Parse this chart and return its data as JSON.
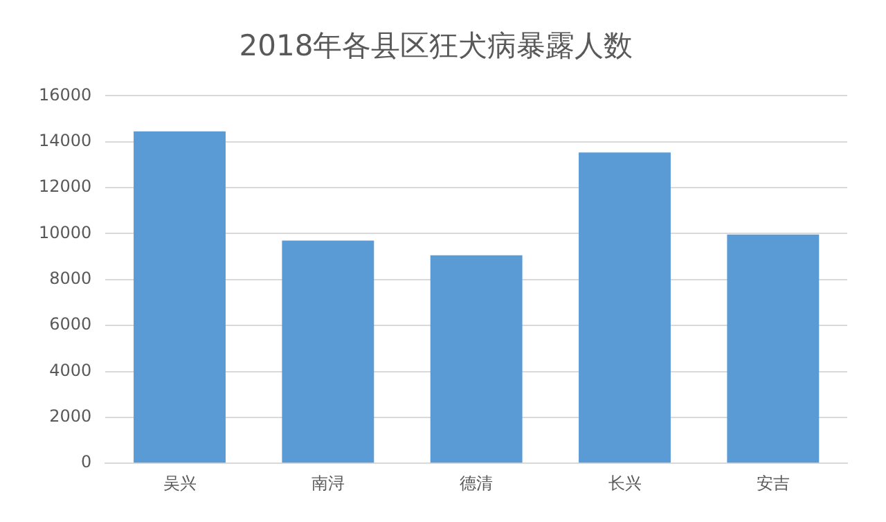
{
  "chart_data": {
    "type": "bar",
    "title": "2018年各县区狂犬病暴露人数",
    "categories": [
      "吴兴",
      "南浔",
      "德清",
      "长兴",
      "安吉"
    ],
    "values": [
      14450,
      9700,
      9060,
      13530,
      9960
    ],
    "color": "#5b9bd5",
    "ylim": [
      0,
      16000
    ],
    "yticks": [
      0,
      2000,
      4000,
      6000,
      8000,
      10000,
      12000,
      14000,
      16000
    ],
    "grid": "y"
  }
}
